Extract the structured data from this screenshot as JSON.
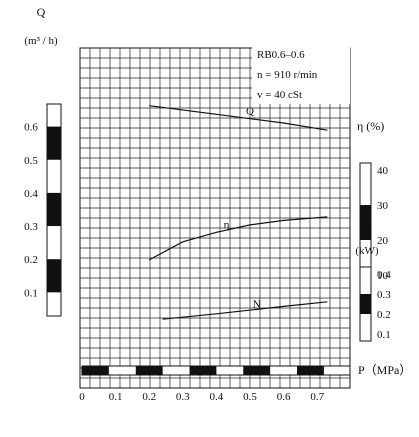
{
  "chart_data": {
    "type": "line",
    "annotation": {
      "model": "RB0.6–0.6",
      "speed": "n = 910 r/min",
      "viscosity": "v = 40 cSt"
    },
    "x_axis": {
      "label": "P（MPa）",
      "ticks": [
        "0",
        "0.1",
        "0.2",
        "0.3",
        "0.4",
        "0.5",
        "0.6",
        "0.7"
      ],
      "range": [
        0,
        0.8
      ]
    },
    "q_axis": {
      "label": "Q",
      "unit": "(m³ / h)",
      "ticks": [
        "0.1",
        "0.2",
        "0.3",
        "0.4",
        "0.5",
        "0.6"
      ],
      "range": [
        0,
        0.7
      ]
    },
    "eta_axis": {
      "label": "η (%)",
      "ticks": [
        "10",
        "20",
        "30",
        "40"
      ],
      "range": [
        10,
        40
      ]
    },
    "n_axis": {
      "label": "N",
      "unit": "(kW)",
      "ticks": [
        "0.1",
        "0.2",
        "0.3",
        "0.4"
      ],
      "range": [
        0.1,
        0.4
      ]
    },
    "series": [
      {
        "name": "Q",
        "axis": "q",
        "x": [
          0.2,
          0.4,
          0.6,
          0.73
        ],
        "values": [
          0.663,
          0.637,
          0.611,
          0.589
        ]
      },
      {
        "name": "η",
        "axis": "eta",
        "x": [
          0.2,
          0.3,
          0.4,
          0.5,
          0.6,
          0.73
        ],
        "values": [
          14.3,
          19.5,
          22.2,
          24.3,
          25.6,
          26.6
        ]
      },
      {
        "name": "N",
        "axis": "n",
        "x": [
          0.24,
          0.4,
          0.6,
          0.73
        ],
        "values": [
          0.174,
          0.201,
          0.238,
          0.261
        ]
      }
    ],
    "grid": true
  }
}
